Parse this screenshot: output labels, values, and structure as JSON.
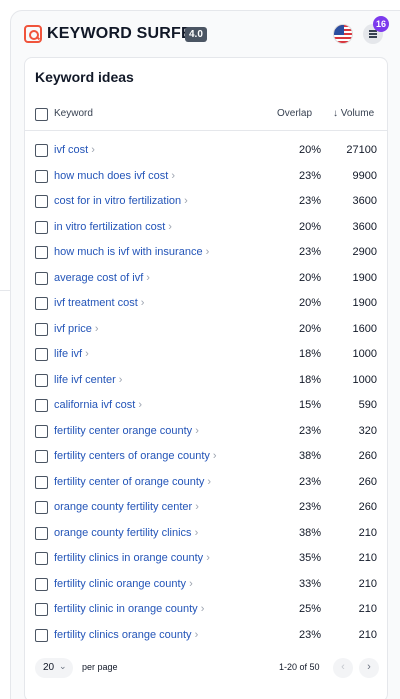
{
  "header": {
    "brand": "KEYWORD SURFER",
    "version": "4.0",
    "notification_count": "16"
  },
  "card": {
    "title": "Keyword ideas",
    "columns": {
      "keyword": "Keyword",
      "overlap": "Overlap",
      "volume": "↓ Volume"
    }
  },
  "rows": [
    {
      "keyword": "ivf cost",
      "overlap": "20%",
      "volume": "27100"
    },
    {
      "keyword": "how much does ivf cost",
      "overlap": "23%",
      "volume": "9900"
    },
    {
      "keyword": "cost for in vitro fertilization",
      "overlap": "23%",
      "volume": "3600"
    },
    {
      "keyword": "in vitro fertilization cost",
      "overlap": "20%",
      "volume": "3600"
    },
    {
      "keyword": "how much is ivf with insurance",
      "overlap": "23%",
      "volume": "2900"
    },
    {
      "keyword": "average cost of ivf",
      "overlap": "20%",
      "volume": "1900"
    },
    {
      "keyword": "ivf treatment cost",
      "overlap": "20%",
      "volume": "1900"
    },
    {
      "keyword": "ivf price",
      "overlap": "20%",
      "volume": "1600"
    },
    {
      "keyword": "life ivf",
      "overlap": "18%",
      "volume": "1000"
    },
    {
      "keyword": "life ivf center",
      "overlap": "18%",
      "volume": "1000"
    },
    {
      "keyword": "california ivf cost",
      "overlap": "15%",
      "volume": "590"
    },
    {
      "keyword": "fertility center orange county",
      "overlap": "23%",
      "volume": "320"
    },
    {
      "keyword": "fertility centers of orange county",
      "overlap": "38%",
      "volume": "260"
    },
    {
      "keyword": "fertility center of orange county",
      "overlap": "23%",
      "volume": "260"
    },
    {
      "keyword": "orange county fertility center",
      "overlap": "23%",
      "volume": "260"
    },
    {
      "keyword": "orange county fertility clinics",
      "overlap": "38%",
      "volume": "210"
    },
    {
      "keyword": "fertility clinics in orange county",
      "overlap": "35%",
      "volume": "210"
    },
    {
      "keyword": "fertility clinic orange county",
      "overlap": "33%",
      "volume": "210"
    },
    {
      "keyword": "fertility clinic in orange county",
      "overlap": "25%",
      "volume": "210"
    },
    {
      "keyword": "fertility clinics orange county",
      "overlap": "23%",
      "volume": "210"
    }
  ],
  "pagination": {
    "per_page_value": "20",
    "per_page_label": "per page",
    "range": "1-20 of 50",
    "prev_icon": "‹",
    "next_icon": "›",
    "select_icon": "⌄"
  },
  "icons": {
    "row_chevron": "›"
  },
  "colors": {
    "accent": "#f0543c",
    "link": "#2455b8",
    "badge": "#7c3aed"
  }
}
